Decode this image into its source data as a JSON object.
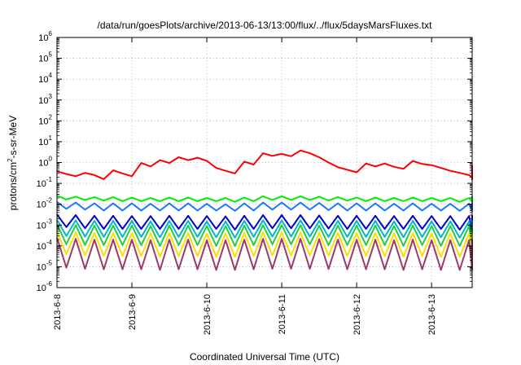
{
  "chart_data": {
    "type": "line",
    "title": "/data/run/goesPlots/archive/2013-06-13/13:00/flux/../flux/5daysMarsFluxes.txt",
    "xlabel": "Coordinated Universal Time (UTC)",
    "ylabel": {
      "prefix": "protons/cm",
      "superscript": "2",
      "suffix": "-s-sr-MeV"
    },
    "y_scale": "log",
    "ylim": [
      1e-06,
      1000000.0
    ],
    "y_ticks": [
      {
        "value": 1e-06,
        "base": "10",
        "exp": "-6"
      },
      {
        "value": 1e-05,
        "base": "10",
        "exp": "-5"
      },
      {
        "value": 0.0001,
        "base": "10",
        "exp": "-4"
      },
      {
        "value": 0.001,
        "base": "10",
        "exp": "-3"
      },
      {
        "value": 0.01,
        "base": "10",
        "exp": "-2"
      },
      {
        "value": 0.1,
        "base": "10",
        "exp": "-1"
      },
      {
        "value": 1.0,
        "base": "10",
        "exp": "0"
      },
      {
        "value": 10.0,
        "base": "10",
        "exp": "1"
      },
      {
        "value": 100.0,
        "base": "10",
        "exp": "2"
      },
      {
        "value": 1000.0,
        "base": "10",
        "exp": "3"
      },
      {
        "value": 10000.0,
        "base": "10",
        "exp": "4"
      },
      {
        "value": 100000.0,
        "base": "10",
        "exp": "5"
      },
      {
        "value": 1000000.0,
        "base": "10",
        "exp": "6"
      }
    ],
    "xlim": [
      "2013-06-08",
      "2013-06-13 13:00"
    ],
    "x_ticks": [
      {
        "value": "2013-06-08",
        "label": "2013-6-8"
      },
      {
        "value": "2013-06-09",
        "label": "2013-6-9"
      },
      {
        "value": "2013-06-10",
        "label": "2013-6-10"
      },
      {
        "value": "2013-06-11",
        "label": "2013-6-11"
      },
      {
        "value": "2013-06-12",
        "label": "2013-6-12"
      },
      {
        "value": "2013-06-13",
        "label": "2013-6-13"
      }
    ],
    "grid": true,
    "x_step_hours": 3,
    "series": [
      {
        "color": "#ff0000",
        "values": [
          0.38,
          0.28,
          0.22,
          0.32,
          0.25,
          0.16,
          0.42,
          0.3,
          0.22,
          0.95,
          0.65,
          1.3,
          0.95,
          1.8,
          1.3,
          1.7,
          1.2,
          0.55,
          0.4,
          0.3,
          1.1,
          0.8,
          2.8,
          2.1,
          2.6,
          2.0,
          3.8,
          2.8,
          1.8,
          1.0,
          0.6,
          0.45,
          0.34,
          0.9,
          0.65,
          0.9,
          0.62,
          0.5,
          1.2,
          0.85,
          0.75,
          0.55,
          0.4,
          0.32,
          0.25,
          0.2,
          0.26,
          0.2,
          0.28,
          0.22,
          0.3,
          0.22,
          0.7,
          0.48,
          0.62,
          0.48,
          0.35,
          0.27,
          0.2,
          0.18,
          0.25,
          0.2,
          0.27,
          0.2,
          0.3,
          0.22,
          0.28,
          0.2,
          0.22,
          0.18,
          0.15,
          0.22,
          0.17,
          0.28,
          0.22,
          0.32,
          0.25
        ]
      },
      {
        "color": "#00ee00",
        "values": [
          0.026,
          0.017,
          0.023,
          0.016,
          0.022,
          0.015,
          0.022,
          0.014,
          0.021,
          0.014,
          0.02,
          0.014,
          0.021,
          0.014,
          0.021,
          0.014,
          0.02,
          0.014,
          0.02,
          0.013,
          0.021,
          0.014,
          0.024,
          0.016,
          0.024,
          0.016,
          0.024,
          0.016,
          0.023,
          0.015,
          0.022,
          0.015,
          0.021,
          0.014,
          0.021,
          0.014,
          0.02,
          0.014,
          0.021,
          0.014,
          0.02,
          0.014,
          0.02,
          0.013,
          0.02,
          0.013,
          0.019,
          0.013,
          0.02,
          0.013,
          0.02,
          0.013,
          0.021,
          0.014,
          0.02,
          0.014,
          0.02,
          0.013,
          0.019,
          0.013,
          0.02,
          0.013,
          0.019,
          0.013,
          0.02,
          0.013,
          0.02,
          0.013,
          0.019,
          0.013,
          0.019,
          0.013,
          0.02,
          0.013,
          0.022,
          0.015,
          0.025
        ]
      },
      {
        "color": "#1e78ff",
        "values": [
          0.013,
          0.006,
          0.012,
          0.0055,
          0.011,
          0.005,
          0.011,
          0.005,
          0.011,
          0.005,
          0.0105,
          0.005,
          0.011,
          0.005,
          0.011,
          0.005,
          0.0105,
          0.005,
          0.01,
          0.0048,
          0.011,
          0.005,
          0.012,
          0.0055,
          0.012,
          0.0055,
          0.012,
          0.0055,
          0.0115,
          0.0052,
          0.011,
          0.005,
          0.011,
          0.005,
          0.011,
          0.005,
          0.0105,
          0.005,
          0.011,
          0.005,
          0.0105,
          0.005,
          0.0105,
          0.0048,
          0.0105,
          0.0048,
          0.01,
          0.0048,
          0.0105,
          0.0048,
          0.0105,
          0.0048,
          0.011,
          0.005,
          0.0105,
          0.005,
          0.0105,
          0.0048,
          0.01,
          0.0048,
          0.0105,
          0.0048,
          0.01,
          0.0048,
          0.0105,
          0.0048,
          0.0105,
          0.0048,
          0.01,
          0.0048,
          0.01,
          0.0048,
          0.0105,
          0.0048,
          0.011,
          0.005,
          0.012
        ]
      },
      {
        "color": "#0000cc",
        "values": [
          0.0032,
          0.0008,
          0.003,
          0.0007,
          0.0028,
          0.00065,
          0.0028,
          0.00065,
          0.0027,
          0.00065,
          0.0027,
          0.00065,
          0.0028,
          0.00065,
          0.0028,
          0.00065,
          0.0027,
          0.00065,
          0.0026,
          0.0006,
          0.0028,
          0.00065,
          0.003,
          0.0007,
          0.003,
          0.0007,
          0.003,
          0.0007,
          0.0029,
          0.00068,
          0.0028,
          0.00065,
          0.0028,
          0.00065,
          0.0028,
          0.00065,
          0.0027,
          0.00065,
          0.0028,
          0.00065,
          0.0027,
          0.00065,
          0.0027,
          0.0006,
          0.0027,
          0.0006,
          0.0026,
          0.0006,
          0.0027,
          0.0006,
          0.0027,
          0.0006,
          0.0028,
          0.00065,
          0.0027,
          0.00065,
          0.0027,
          0.0006,
          0.0026,
          0.0006,
          0.0027,
          0.0006,
          0.0026,
          0.0006,
          0.0027,
          0.0006,
          0.0027,
          0.0006,
          0.0026,
          0.0006,
          0.0026,
          0.0006,
          0.0027,
          0.0006,
          0.0028,
          0.00065,
          0.0012
        ]
      },
      {
        "color": "#00b8c8",
        "values": [
          0.0018,
          0.0003,
          0.0017,
          0.00028,
          0.0016,
          0.00027,
          0.0016,
          0.00027,
          0.0016,
          0.00027,
          0.0015,
          0.00026,
          0.0016,
          0.00027,
          0.0016,
          0.00027,
          0.0015,
          0.00026,
          0.0015,
          0.00025,
          0.0016,
          0.00027,
          0.0017,
          0.00028,
          0.0017,
          0.00028,
          0.0017,
          0.00028,
          0.0016,
          0.00027,
          0.0016,
          0.00027,
          0.0016,
          0.00027,
          0.0016,
          0.00027,
          0.0015,
          0.00026,
          0.0016,
          0.00027,
          0.0015,
          0.00026,
          0.0015,
          0.00025,
          0.0015,
          0.00025,
          0.0015,
          0.00025,
          0.0015,
          0.00025,
          0.0015,
          0.00025,
          0.0016,
          0.00027,
          0.0015,
          0.00026,
          0.0015,
          0.00025,
          0.0015,
          0.00025,
          0.0015,
          0.00025,
          0.0015,
          0.00025,
          0.0015,
          0.00025,
          0.0015,
          0.00025,
          0.0015,
          0.00025,
          0.0015,
          0.00025,
          0.0015,
          0.00025,
          0.0016,
          0.00027,
          0.0007
        ]
      },
      {
        "color": "#22cc44",
        "values": [
          0.0011,
          0.00012,
          0.001,
          0.00011,
          0.00095,
          0.00011,
          0.00095,
          0.00011,
          0.00095,
          0.00011,
          0.0009,
          0.0001,
          0.00095,
          0.00011,
          0.00095,
          0.00011,
          0.0009,
          0.0001,
          0.0009,
          0.0001,
          0.00095,
          0.00011,
          0.001,
          0.00012,
          0.001,
          0.00012,
          0.001,
          0.00012,
          0.00095,
          0.00011,
          0.00095,
          0.00011,
          0.00095,
          0.00011,
          0.00095,
          0.00011,
          0.0009,
          0.0001,
          0.00095,
          0.00011,
          0.0009,
          0.0001,
          0.0009,
          0.0001,
          0.0009,
          0.0001,
          0.0009,
          0.0001,
          0.0009,
          0.0001,
          0.0009,
          0.0001,
          0.00095,
          0.00011,
          0.0009,
          0.0001,
          0.0009,
          0.0001,
          0.0009,
          0.0001,
          0.0009,
          0.0001,
          0.0009,
          0.0001,
          0.0009,
          0.0001,
          0.0009,
          0.0001,
          0.0009,
          0.0001,
          0.0009,
          0.0001,
          0.0009,
          0.0001,
          0.00095,
          0.00011,
          0.0004
        ]
      },
      {
        "color": "#ffdd00",
        "values": [
          0.0005,
          4e-05,
          0.00045,
          3.5e-05,
          0.00042,
          3.3e-05,
          0.00042,
          3.3e-05,
          0.00042,
          3.3e-05,
          0.0004,
          3e-05,
          0.00042,
          3.3e-05,
          0.00042,
          3.3e-05,
          0.0004,
          3e-05,
          0.0004,
          3e-05,
          0.00042,
          3.3e-05,
          0.00045,
          3.5e-05,
          0.00045,
          3.5e-05,
          0.00045,
          3.5e-05,
          0.00043,
          3.4e-05,
          0.00042,
          3.3e-05,
          0.00042,
          3.3e-05,
          0.00042,
          3.3e-05,
          0.0004,
          3e-05,
          0.00042,
          3.3e-05,
          0.0004,
          3e-05,
          0.0004,
          3e-05,
          0.0004,
          3e-05,
          0.0004,
          3e-05,
          0.0004,
          3e-05,
          0.0004,
          3e-05,
          0.00042,
          3.3e-05,
          0.0004,
          3e-05,
          0.0004,
          3e-05,
          0.0004,
          3e-05,
          0.0004,
          3e-05,
          0.0004,
          3e-05,
          0.0004,
          3e-05,
          0.0004,
          3e-05,
          0.0004,
          3e-05,
          0.0004,
          3e-05,
          0.0004,
          3e-05,
          0.00042,
          3.3e-05,
          0.0002
        ]
      },
      {
        "color": "#9c3a6e",
        "values": [
          0.00025,
          9e-06,
          0.00022,
          8e-06,
          0.0002,
          7.5e-06,
          0.0002,
          7.5e-06,
          0.0002,
          7.5e-06,
          0.00019,
          7e-06,
          0.0002,
          7.5e-06,
          0.0002,
          7.5e-06,
          0.00019,
          7e-06,
          0.00019,
          7e-06,
          0.0002,
          7.5e-06,
          0.00022,
          8e-06,
          0.00022,
          8e-06,
          0.00022,
          8e-06,
          0.00021,
          7.8e-06,
          0.0002,
          7.5e-06,
          0.0002,
          7.5e-06,
          0.0002,
          7.5e-06,
          0.00019,
          7e-06,
          0.0002,
          7.5e-06,
          0.00019,
          7e-06,
          0.00019,
          7e-06,
          0.00019,
          7e-06,
          0.00019,
          7e-06,
          0.00019,
          7e-06,
          0.00019,
          7e-06,
          0.0002,
          7.5e-06,
          0.00019,
          7e-06,
          0.00019,
          7e-06,
          0.00019,
          7e-06,
          0.00019,
          7e-06,
          0.00019,
          7e-06,
          0.00019,
          7e-06,
          0.00019,
          7e-06,
          0.00019,
          7e-06,
          0.00019,
          7e-06,
          0.00019,
          7e-06,
          0.0002,
          7.5e-06,
          9e-06
        ]
      }
    ]
  }
}
